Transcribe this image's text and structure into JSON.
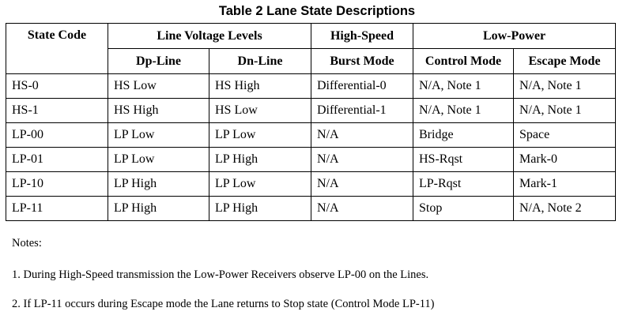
{
  "title": "Table 2 Lane State Descriptions",
  "header": {
    "state_code": "State Code",
    "line_voltage_levels": "Line Voltage Levels",
    "high_speed": "High-Speed",
    "low_power": "Low-Power",
    "dp_line": "Dp-Line",
    "dn_line": "Dn-Line",
    "burst_mode": "Burst Mode",
    "control_mode": "Control Mode",
    "escape_mode": "Escape Mode"
  },
  "rows": [
    [
      "HS-0",
      "HS Low",
      "HS High",
      "Differential-0",
      "N/A, Note 1",
      "N/A, Note 1"
    ],
    [
      "HS-1",
      "HS High",
      "HS Low",
      "Differential-1",
      "N/A, Note 1",
      "N/A, Note 1"
    ],
    [
      "LP-00",
      "LP Low",
      "LP Low",
      "N/A",
      "Bridge",
      "Space"
    ],
    [
      "LP-01",
      "LP Low",
      "LP High",
      "N/A",
      "HS-Rqst",
      "Mark-0"
    ],
    [
      "LP-10",
      "LP High",
      "LP Low",
      "N/A",
      "LP-Rqst",
      "Mark-1"
    ],
    [
      "LP-11",
      "LP High",
      "LP High",
      "N/A",
      "Stop",
      "N/A, Note 2"
    ]
  ],
  "notes": {
    "heading": "Notes:",
    "items": [
      "1. During High-Speed transmission the Low-Power Receivers observe LP-00 on the Lines.",
      "2. If LP-11 occurs during Escape mode the Lane returns to Stop state (Control Mode LP-11)"
    ]
  }
}
